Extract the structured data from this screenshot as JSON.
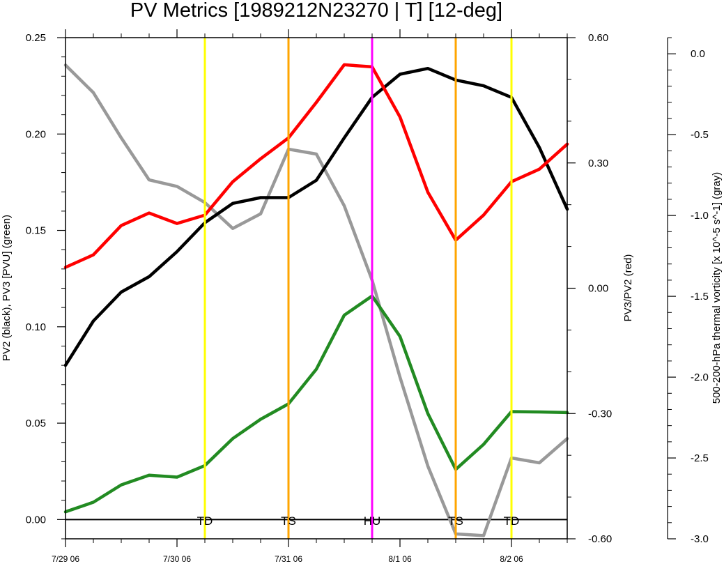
{
  "chart_data": {
    "type": "line",
    "title": "PV Metrics [1989212N23270 | T] [12-deg]",
    "x": {
      "ticks": [
        0,
        1,
        2,
        3,
        4
      ],
      "tick_labels": [
        "7/29 06",
        "7/30 06",
        "7/31 06",
        "8/1 06",
        "8/2 06"
      ],
      "range": [
        0,
        4.5
      ]
    },
    "y_left": {
      "label": "PV2 (black), PV3 [PVU] (green)",
      "range": [
        -0.01,
        0.25
      ],
      "ticks": [
        0.0,
        0.05,
        0.1,
        0.15,
        0.2,
        0.25
      ],
      "tick_labels": [
        "0.00",
        "0.05",
        "0.10",
        "0.15",
        "0.20",
        "0.25"
      ]
    },
    "y_right": {
      "label": "PV3/PV2 (red)",
      "range": [
        -0.6,
        0.6
      ],
      "ticks": [
        -0.6,
        -0.3,
        0.0,
        0.3,
        0.6
      ],
      "tick_labels": [
        "-0.60",
        "-0.30",
        "0.00",
        "0.30",
        "0.60"
      ]
    },
    "y_right_outer": {
      "label": "500-200-hPa thermal vorticity [x 10^-5 s^-1] (gray)",
      "range": [
        -3.0,
        0.1
      ],
      "ticks": [
        0.0,
        -0.5,
        -1.0,
        -1.5,
        -2.0,
        -2.5,
        -3.0
      ],
      "tick_labels": [
        "0.0",
        "-0.5",
        "-1.0",
        "-1.5",
        "-2.0",
        "-2.5",
        "-3.0"
      ]
    },
    "x_values": [
      0,
      0.25,
      0.5,
      0.75,
      1.0,
      1.25,
      1.5,
      1.75,
      2.0,
      2.25,
      2.5,
      2.75,
      3.0,
      3.25,
      3.5,
      3.75,
      4.0,
      4.25,
      4.5
    ],
    "series": [
      {
        "axis": "left",
        "color": "#000000",
        "values": [
          0.08,
          0.103,
          0.118,
          0.126,
          0.139,
          0.154,
          0.164,
          0.167,
          0.167,
          0.176,
          0.198,
          0.219,
          0.231,
          0.234,
          0.228,
          0.225,
          0.219,
          0.193,
          0.161
        ]
      },
      {
        "axis": "left",
        "color": "#228b22",
        "values": [
          0.004,
          0.009,
          0.018,
          0.023,
          0.022,
          0.028,
          0.042,
          0.052,
          0.06,
          0.078,
          0.106,
          0.116,
          0.095,
          0.055,
          0.026,
          0.039,
          0.056,
          0.0558,
          0.0555
        ]
      },
      {
        "axis": "right",
        "color": "#ff0000",
        "values": [
          0.05,
          0.08,
          0.15,
          0.18,
          0.155,
          0.175,
          0.255,
          0.31,
          0.36,
          0.445,
          0.535,
          0.53,
          0.41,
          0.23,
          0.115,
          0.175,
          0.255,
          0.285,
          0.345
        ]
      },
      {
        "axis": "right_outer",
        "color": "#999999",
        "values": [
          -0.07,
          -0.24,
          -0.52,
          -0.78,
          -0.82,
          -0.92,
          -1.08,
          -0.99,
          -0.59,
          -0.62,
          -0.94,
          -1.4,
          -2.0,
          -2.55,
          -2.97,
          -2.98,
          -2.5,
          -2.53,
          -2.38
        ]
      }
    ],
    "stage_markers": [
      {
        "x": 1.25,
        "label": "TD",
        "color": "#ffff00"
      },
      {
        "x": 2.0,
        "label": "TS",
        "color": "#ffa500"
      },
      {
        "x": 2.75,
        "label": "HU",
        "color": "#ff00ff"
      },
      {
        "x": 3.5,
        "label": "TS",
        "color": "#ffa500"
      },
      {
        "x": 4.0,
        "label": "TD",
        "color": "#ffff00"
      }
    ],
    "zero_line_left": 0.0,
    "grid": false
  }
}
